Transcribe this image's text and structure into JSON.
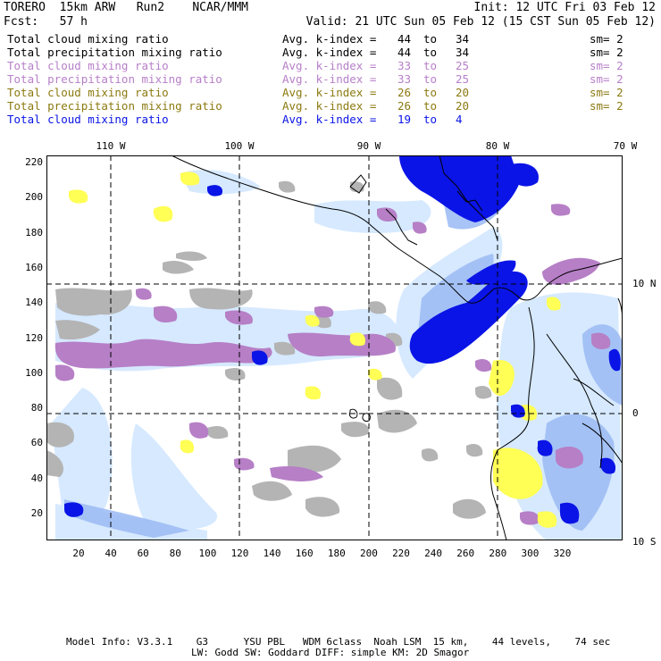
{
  "header": {
    "model": "TORERO",
    "resolution": "15km ARW",
    "run": "Run2",
    "org": "NCAR/MMM",
    "init": "Init: 12 UTC Fri 03 Feb 12",
    "fcst_label": "Fcst:",
    "fcst_value": "57 h",
    "valid": "Valid: 21 UTC Sun 05 Feb 12 (15 CST Sun 05 Feb 12)"
  },
  "legend": [
    {
      "field": "Total cloud mixing ratio",
      "avg": "Avg. k-index =",
      "from": "44",
      "to_word": "to",
      "to": "34",
      "sm": "sm= 2",
      "color": "#000000"
    },
    {
      "field": "Total precipitation mixing ratio",
      "avg": "Avg. k-index =",
      "from": "44",
      "to_word": "to",
      "to": "34",
      "sm": "sm= 2",
      "color": "#000000"
    },
    {
      "field": "Total cloud mixing ratio",
      "avg": "Avg. k-index =",
      "from": "33",
      "to_word": "to",
      "to": "25",
      "sm": "sm= 2",
      "color": "#b77fc9"
    },
    {
      "field": "Total precipitation mixing ratio",
      "avg": "Avg. k-index =",
      "from": "33",
      "to_word": "to",
      "to": "25",
      "sm": "sm= 2",
      "color": "#b77fc9"
    },
    {
      "field": "Total cloud mixing ratio",
      "avg": "Avg. k-index =",
      "from": "26",
      "to_word": "to",
      "to": "20",
      "sm": "sm= 2",
      "color": "#8c7a10"
    },
    {
      "field": "Total precipitation mixing ratio",
      "avg": "Avg. k-index =",
      "from": "26",
      "to_word": "to",
      "to": "20",
      "sm": "sm= 2",
      "color": "#8c7a10"
    },
    {
      "field": "Total cloud mixing ratio",
      "avg": "Avg. k-index =",
      "from": "19",
      "to_word": "to",
      "to": "4",
      "sm": "",
      "color": "#0a14e6"
    }
  ],
  "map": {
    "lon_labels": [
      "110 W",
      "100 W",
      "90 W",
      "80 W",
      "70 W"
    ],
    "lat_labels": [
      "10 N",
      "0",
      "10 S"
    ],
    "x_ticks": [
      "20",
      "40",
      "60",
      "80",
      "100",
      "120",
      "140",
      "160",
      "180",
      "200",
      "220",
      "240",
      "260",
      "280",
      "300",
      "320"
    ],
    "y_ticks": [
      "220",
      "200",
      "180",
      "160",
      "140",
      "120",
      "100",
      "80",
      "60",
      "40",
      "20"
    ],
    "colors": {
      "gray": "#b4b4b4",
      "violet": "#b67fc6",
      "yellow": "#ffff55",
      "light_blue": "#cfe6ff",
      "mid_blue": "#8fb1f2",
      "blue": "#0a14e6",
      "grid": "#000000"
    }
  },
  "footer": {
    "line1": "Model Info: V3.3.1    G3      YSU PBL   WDM 6class  Noah LSM  15 km,    44 levels,    74 sec",
    "line2": "LW: Godd SW: Goddard DIFF: simple KM: 2D Smagor"
  }
}
